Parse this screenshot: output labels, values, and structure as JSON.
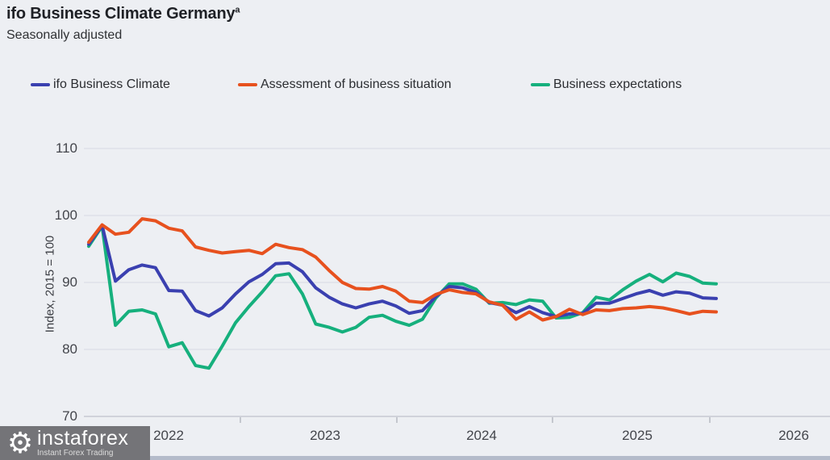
{
  "page": {
    "background": "#edeff3"
  },
  "header": {
    "title": "ifo Business Climate Germany",
    "title_superscript": "a",
    "subtitle": "Seasonally adjusted"
  },
  "yaxis": {
    "title": "Index, 2015 = 100",
    "ticks": [
      110,
      100,
      90,
      80,
      70
    ]
  },
  "xaxis": {
    "tick_labels": [
      "2022",
      "2023",
      "2024",
      "2025",
      "2026"
    ]
  },
  "chart_data": {
    "type": "line",
    "title": "ifo Business Climate Germany (a)",
    "subtitle": "Seasonally adjusted",
    "xlabel": "",
    "ylabel": "Index, 2015 = 100",
    "ylim": [
      70,
      110
    ],
    "yticks": [
      70,
      80,
      90,
      100,
      110
    ],
    "x_tick_labels": [
      "2022",
      "2023",
      "2024",
      "2025",
      "2026"
    ],
    "grid": true,
    "legend_position": "top",
    "x_months": [
      "2022-01",
      "2022-02",
      "2022-03",
      "2022-04",
      "2022-05",
      "2022-06",
      "2022-07",
      "2022-08",
      "2022-09",
      "2022-10",
      "2022-11",
      "2022-12",
      "2023-01",
      "2023-02",
      "2023-03",
      "2023-04",
      "2023-05",
      "2023-06",
      "2023-07",
      "2023-08",
      "2023-09",
      "2023-10",
      "2023-11",
      "2023-12",
      "2024-01",
      "2024-02",
      "2024-03",
      "2024-04",
      "2024-05",
      "2024-06",
      "2024-07",
      "2024-08",
      "2024-09",
      "2024-10",
      "2024-11",
      "2024-12",
      "2025-01",
      "2025-02",
      "2025-03",
      "2025-04",
      "2025-05",
      "2025-06",
      "2025-07",
      "2025-08",
      "2025-09",
      "2025-10",
      "2025-11",
      "2025-12"
    ],
    "series": [
      {
        "name": "Business expectations",
        "color": "#16b07d",
        "values": [
          95.4,
          98.4,
          83.6,
          85.7,
          85.9,
          85.3,
          80.4,
          81.0,
          77.6,
          77.2,
          80.5,
          84.0,
          86.4,
          88.6,
          91.0,
          91.3,
          88.3,
          83.8,
          83.3,
          82.6,
          83.3,
          84.8,
          85.1,
          84.2,
          83.6,
          84.5,
          87.7,
          89.8,
          89.8,
          89.0,
          86.9,
          87.0,
          86.7,
          87.4,
          87.2,
          84.7,
          84.8,
          85.5,
          87.8,
          87.4,
          88.9,
          90.2,
          91.2,
          90.1,
          91.4,
          90.9,
          89.9,
          89.8
        ]
      },
      {
        "name": "ifo Business Climate",
        "color": "#3a40b0",
        "values": [
          95.7,
          98.5,
          90.2,
          91.9,
          92.6,
          92.2,
          88.8,
          88.7,
          85.8,
          85.0,
          86.2,
          88.3,
          90.1,
          91.2,
          92.8,
          92.9,
          91.6,
          89.2,
          87.8,
          86.8,
          86.2,
          86.8,
          87.2,
          86.5,
          85.4,
          85.8,
          87.9,
          89.4,
          89.2,
          88.5,
          87.0,
          86.6,
          85.5,
          86.4,
          85.5,
          84.9,
          85.3,
          85.4,
          86.9,
          86.9,
          87.6,
          88.3,
          88.8,
          88.1,
          88.6,
          88.4,
          87.7,
          87.6
        ]
      },
      {
        "name": "Assessment of business situation",
        "color": "#e7511e",
        "values": [
          96.0,
          98.6,
          97.2,
          97.5,
          99.5,
          99.2,
          98.1,
          97.7,
          95.3,
          94.8,
          94.4,
          94.6,
          94.8,
          94.3,
          95.7,
          95.2,
          94.9,
          93.8,
          91.8,
          90.0,
          89.1,
          89.0,
          89.4,
          88.7,
          87.2,
          87.0,
          88.2,
          88.9,
          88.5,
          88.3,
          87.1,
          86.6,
          84.5,
          85.6,
          84.4,
          84.9,
          86.0,
          85.2,
          85.9,
          85.8,
          86.1,
          86.2,
          86.4,
          86.2,
          85.8,
          85.3,
          85.7,
          85.6
        ]
      }
    ]
  },
  "legend": {
    "items": [
      "ifo Business Climate",
      "Assessment of business situation",
      "Business expectations"
    ]
  },
  "footer": {
    "logo_text": "instaforex",
    "logo_subtext": "Instant Forex Trading",
    "logo_background": "#747478",
    "strip_color": "#b4bbca"
  }
}
